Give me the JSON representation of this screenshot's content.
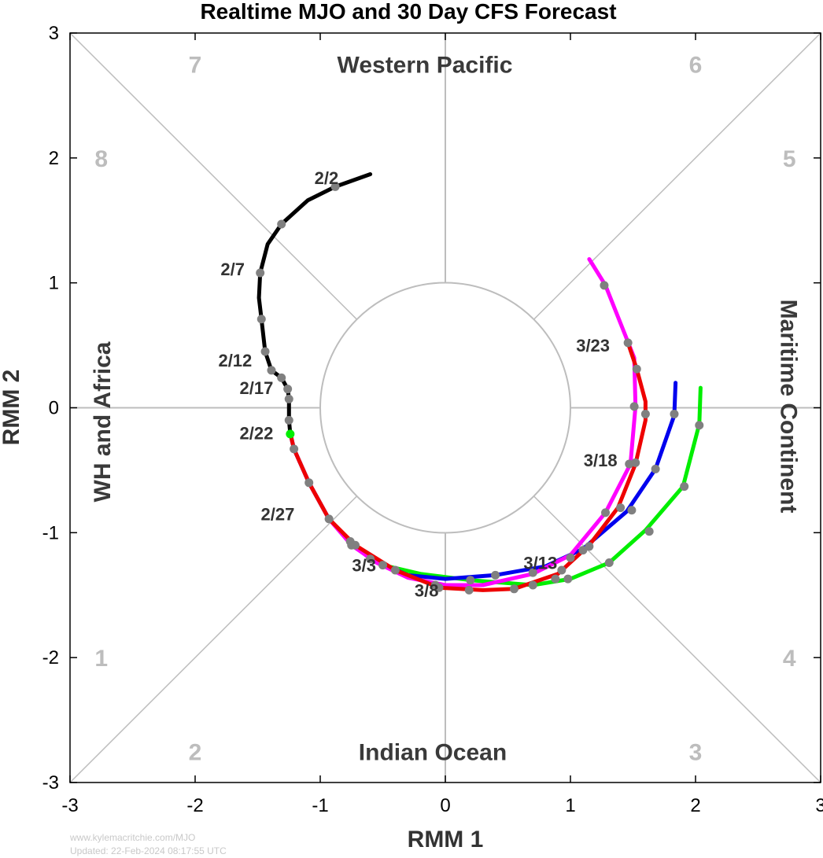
{
  "chart_data": {
    "type": "line",
    "title": "Realtime MJO and 30 Day CFS Forecast",
    "xlabel": "RMM 1",
    "ylabel": "RMM 2",
    "xlim": [
      -3,
      3
    ],
    "ylim": [
      -3,
      3
    ],
    "xticks": [
      "-3",
      "-2",
      "-1",
      "0",
      "1",
      "2",
      "3"
    ],
    "yticks": [
      "-3",
      "-2",
      "-1",
      "0",
      "1",
      "2",
      "3"
    ],
    "regions": {
      "top": "Western Pacific",
      "bottom": "Indian Ocean",
      "left": "WH and Africa",
      "right": "Maritime Continent"
    },
    "phases": [
      {
        "label": "1",
        "x": -2.75,
        "y": -2.0
      },
      {
        "label": "2",
        "x": -2.0,
        "y": -2.75
      },
      {
        "label": "3",
        "x": 2.0,
        "y": -2.75
      },
      {
        "label": "4",
        "x": 2.75,
        "y": -2.0
      },
      {
        "label": "5",
        "x": 2.75,
        "y": 2.0
      },
      {
        "label": "6",
        "x": 2.0,
        "y": 2.75
      },
      {
        "label": "7",
        "x": -2.0,
        "y": 2.75
      },
      {
        "label": "8",
        "x": -2.75,
        "y": 2.0
      }
    ],
    "series": [
      {
        "color": "#000000",
        "points": [
          [
            -0.6,
            1.87
          ],
          [
            -0.88,
            1.77
          ],
          [
            -1.1,
            1.66
          ],
          [
            -1.31,
            1.47
          ],
          [
            -1.42,
            1.31
          ],
          [
            -1.48,
            1.08
          ],
          [
            -1.49,
            0.88
          ],
          [
            -1.47,
            0.71
          ],
          [
            -1.44,
            0.45
          ],
          [
            -1.39,
            0.3
          ],
          [
            -1.31,
            0.24
          ],
          [
            -1.26,
            0.15
          ],
          [
            -1.25,
            0.07
          ],
          [
            -1.25,
            -0.1
          ],
          [
            -1.24,
            -0.2
          ]
        ],
        "markers": [
          [
            -0.88,
            1.77
          ],
          [
            -1.31,
            1.47
          ],
          [
            -1.48,
            1.08
          ],
          [
            -1.47,
            0.71
          ],
          [
            -1.44,
            0.45
          ],
          [
            -1.39,
            0.3
          ],
          [
            -1.31,
            0.24
          ],
          [
            -1.26,
            0.15
          ],
          [
            -1.25,
            0.07
          ],
          [
            -1.25,
            -0.1
          ]
        ]
      },
      {
        "color": "#00ee00",
        "points": [
          [
            -1.24,
            -0.2
          ],
          [
            -1.21,
            -0.33
          ],
          [
            -1.09,
            -0.6
          ],
          [
            -0.93,
            -0.89
          ],
          [
            -0.76,
            -1.07
          ],
          [
            -0.5,
            -1.26
          ],
          [
            -0.2,
            -1.33
          ],
          [
            0.2,
            -1.38
          ],
          [
            0.7,
            -1.42
          ],
          [
            1.0,
            -1.37
          ],
          [
            1.31,
            -1.24
          ],
          [
            1.6,
            -0.98
          ],
          [
            1.9,
            -0.63
          ],
          [
            2.03,
            -0.13
          ],
          [
            2.04,
            0.16
          ]
        ],
        "markers": [
          [
            -1.21,
            -0.33
          ],
          [
            -1.09,
            -0.6
          ],
          [
            -0.93,
            -0.89
          ],
          [
            -0.76,
            -1.07
          ],
          [
            -0.5,
            -1.26
          ],
          [
            0.2,
            -1.38
          ],
          [
            0.7,
            -1.42
          ],
          [
            0.88,
            -1.37
          ],
          [
            0.98,
            -1.37
          ],
          [
            1.31,
            -1.24
          ],
          [
            1.63,
            -0.99
          ],
          [
            1.91,
            -0.63
          ],
          [
            2.03,
            -0.14
          ]
        ]
      },
      {
        "color": "#0000ee",
        "points": [
          [
            -1.24,
            -0.2
          ],
          [
            -1.21,
            -0.33
          ],
          [
            -1.09,
            -0.6
          ],
          [
            -0.93,
            -0.89
          ],
          [
            -0.76,
            -1.07
          ],
          [
            -0.6,
            -1.21
          ],
          [
            -0.3,
            -1.34
          ],
          [
            0.0,
            -1.37
          ],
          [
            0.4,
            -1.34
          ],
          [
            0.8,
            -1.27
          ],
          [
            1.1,
            -1.13
          ],
          [
            1.45,
            -0.83
          ],
          [
            1.68,
            -0.49
          ],
          [
            1.83,
            -0.06
          ],
          [
            1.84,
            0.2
          ]
        ],
        "markers": [
          [
            -0.6,
            -1.21
          ],
          [
            0.4,
            -1.34
          ],
          [
            1.1,
            -1.14
          ],
          [
            1.49,
            -0.82
          ],
          [
            1.68,
            -0.49
          ],
          [
            1.83,
            -0.05
          ]
        ]
      },
      {
        "color": "#ff00ff",
        "points": [
          [
            -1.24,
            -0.2
          ],
          [
            -1.21,
            -0.33
          ],
          [
            -1.09,
            -0.6
          ],
          [
            -0.93,
            -0.89
          ],
          [
            -0.75,
            -1.1
          ],
          [
            -0.55,
            -1.24
          ],
          [
            -0.3,
            -1.36
          ],
          [
            0.0,
            -1.42
          ],
          [
            0.3,
            -1.42
          ],
          [
            0.7,
            -1.33
          ],
          [
            1.0,
            -1.18
          ],
          [
            1.28,
            -0.84
          ],
          [
            1.48,
            -0.45
          ],
          [
            1.52,
            0.01
          ],
          [
            1.51,
            0.4
          ],
          [
            1.28,
            0.98
          ],
          [
            1.15,
            1.19
          ]
        ],
        "markers": [
          [
            -0.75,
            -1.1
          ],
          [
            -0.08,
            -1.42
          ],
          [
            0.7,
            -1.32
          ],
          [
            1.0,
            -1.2
          ],
          [
            1.28,
            -0.84
          ],
          [
            1.47,
            -0.45
          ],
          [
            1.51,
            0.01
          ],
          [
            1.27,
            0.98
          ]
        ]
      },
      {
        "color": "#ee0000",
        "points": [
          [
            -1.24,
            -0.2
          ],
          [
            -1.21,
            -0.33
          ],
          [
            -1.09,
            -0.6
          ],
          [
            -0.93,
            -0.89
          ],
          [
            -0.72,
            -1.1
          ],
          [
            -0.4,
            -1.3
          ],
          [
            -0.05,
            -1.44
          ],
          [
            0.3,
            -1.46
          ],
          [
            0.55,
            -1.45
          ],
          [
            0.9,
            -1.33
          ],
          [
            1.15,
            -1.1
          ],
          [
            1.38,
            -0.8
          ],
          [
            1.52,
            -0.45
          ],
          [
            1.6,
            -0.1
          ],
          [
            1.6,
            0.05
          ],
          [
            1.53,
            0.31
          ],
          [
            1.46,
            0.52
          ]
        ],
        "markers": [
          [
            -0.72,
            -1.1
          ],
          [
            -0.4,
            -1.3
          ],
          [
            -0.05,
            -1.44
          ],
          [
            0.19,
            -1.46
          ],
          [
            0.55,
            -1.45
          ],
          [
            0.93,
            -1.3
          ],
          [
            1.15,
            -1.11
          ],
          [
            1.4,
            -0.8
          ],
          [
            1.52,
            -0.44
          ],
          [
            1.6,
            -0.05
          ],
          [
            1.53,
            0.31
          ],
          [
            1.46,
            0.52
          ]
        ]
      }
    ],
    "current_marker": {
      "color": "#00ee00",
      "x": -1.24,
      "y": -0.21
    },
    "date_labels": [
      {
        "text": "2/2",
        "x": -0.95,
        "y": 1.84
      },
      {
        "text": "2/7",
        "x": -1.7,
        "y": 1.11
      },
      {
        "text": "2/12",
        "x": -1.68,
        "y": 0.38
      },
      {
        "text": "2/17",
        "x": -1.51,
        "y": 0.16
      },
      {
        "text": "2/22",
        "x": -1.51,
        "y": -0.2
      },
      {
        "text": "2/27",
        "x": -1.34,
        "y": -0.85
      },
      {
        "text": "3/3",
        "x": -0.65,
        "y": -1.26
      },
      {
        "text": "3/8",
        "x": -0.15,
        "y": -1.46
      },
      {
        "text": "3/13",
        "x": 0.76,
        "y": -1.24
      },
      {
        "text": "3/18",
        "x": 1.24,
        "y": -0.42
      },
      {
        "text": "3/23",
        "x": 1.18,
        "y": 0.5
      }
    ],
    "grid": false,
    "legend": "none"
  },
  "footer": {
    "site": "www.kylemacritchie.com/MJO",
    "updated": "Updated: 22-Feb-2024 08:17:55 UTC"
  }
}
